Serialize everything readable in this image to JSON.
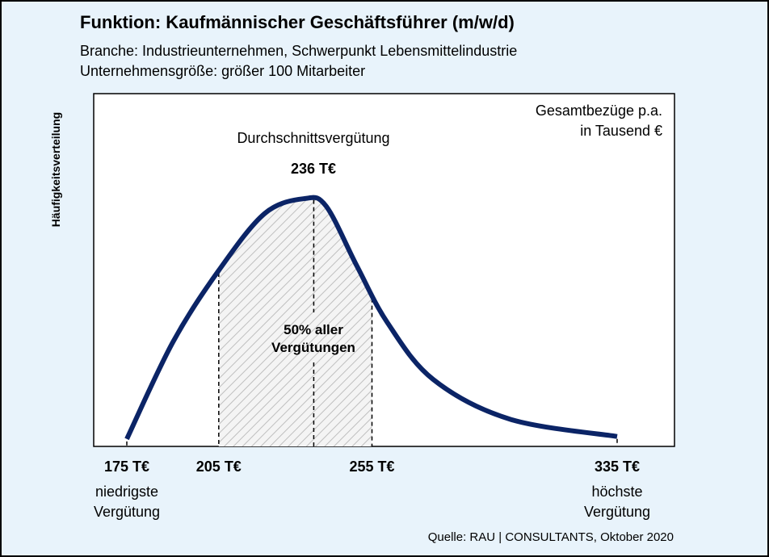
{
  "header": {
    "title": "Funktion: Kaufmännischer Geschäftsführer (m/w/d)",
    "subtitle_line1": "Branche: Industrieunternehmen, Schwerpunkt Lebensmittelindustrie",
    "subtitle_line2": "Unternehmensgröße: größer 100 Mitarbeiter"
  },
  "source": "Quelle: RAU | CONSULTANTS, Oktober 2020",
  "colors": {
    "curve": "#0b2466",
    "background": "#e8f3fb",
    "plot_background": "#ffffff",
    "hatch": "#bfbfbf"
  },
  "chart_data": {
    "type": "area",
    "ylabel": "Häufigkeitsverteilung",
    "unit_note_line1": "Gesamtbezüge p.a.",
    "unit_note_line2": "in Tausend €",
    "x_min": 175,
    "x_max": 335,
    "curve": {
      "x": [
        175,
        190,
        205,
        220,
        233,
        240,
        250,
        260,
        275,
        300,
        335
      ],
      "relative_frequency": [
        0.03,
        0.42,
        0.71,
        0.94,
        1.0,
        0.97,
        0.73,
        0.5,
        0.27,
        0.11,
        0.04
      ]
    },
    "average": {
      "value": 236,
      "label": "Durchschnittsvergütung",
      "value_label": "236 T€"
    },
    "middle_range": {
      "from": 205,
      "to": 255,
      "label_line1": "50% aller",
      "label_line2": "Vergütungen"
    },
    "markers": [
      {
        "value": 175,
        "label": "175 T€",
        "desc_line1": "niedrigste",
        "desc_line2": "Vergütung"
      },
      {
        "value": 205,
        "label": "205 T€",
        "desc_line1": "",
        "desc_line2": ""
      },
      {
        "value": 255,
        "label": "255 T€",
        "desc_line1": "",
        "desc_line2": ""
      },
      {
        "value": 335,
        "label": "335 T€",
        "desc_line1": "höchste",
        "desc_line2": "Vergütung"
      }
    ]
  }
}
